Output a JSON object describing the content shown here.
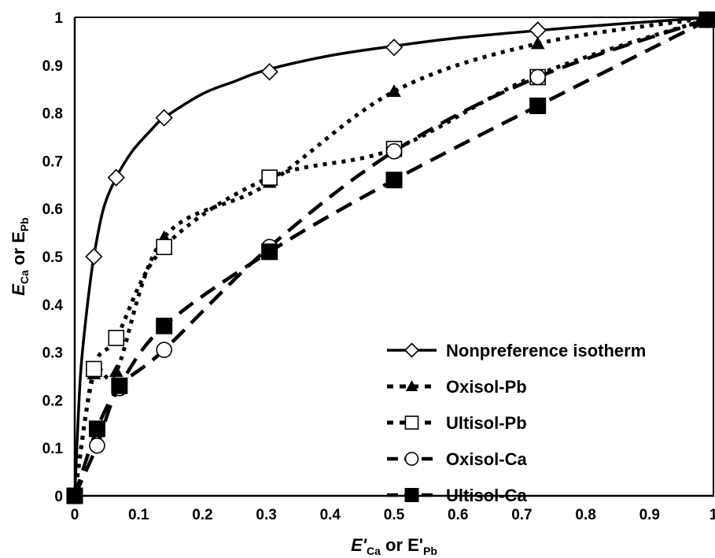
{
  "chart_data": {
    "type": "line",
    "xlabel": {
      "main": "E'",
      "sub1": "Ca",
      "mid": " or E'",
      "sub2": "Pb"
    },
    "ylabel": {
      "main": "E",
      "sub1": "Ca",
      "mid": " or E",
      "sub2": "Pb"
    },
    "xlim": [
      0,
      1
    ],
    "ylim": [
      0,
      1
    ],
    "x_ticks": [
      "0",
      "0.1",
      "0.2",
      "0.3",
      "0.4",
      "0.5",
      "0.6",
      "0.7",
      "0.8",
      "0.9",
      "1"
    ],
    "y_ticks": [
      "0",
      "0.1",
      "0.2",
      "0.3",
      "0.4",
      "0.5",
      "0.6",
      "0.7",
      "0.8",
      "0.9",
      "1"
    ],
    "grid": false,
    "legend_position": "lower-right",
    "series": [
      {
        "name": "Nonpreference isotherm",
        "line": "solid",
        "marker": "diamond-open",
        "color": "#000000",
        "curve": [
          [
            0,
            0
          ],
          [
            0.005,
            0.15
          ],
          [
            0.01,
            0.27
          ],
          [
            0.02,
            0.4
          ],
          [
            0.03,
            0.5
          ],
          [
            0.045,
            0.6
          ],
          [
            0.065,
            0.665
          ],
          [
            0.09,
            0.72
          ],
          [
            0.12,
            0.765
          ],
          [
            0.14,
            0.79
          ],
          [
            0.2,
            0.84
          ],
          [
            0.25,
            0.866
          ],
          [
            0.3,
            0.89
          ],
          [
            0.4,
            0.92
          ],
          [
            0.5,
            0.94
          ],
          [
            0.6,
            0.957
          ],
          [
            0.73,
            0.973
          ],
          [
            0.85,
            0.986
          ],
          [
            1,
            1
          ]
        ],
        "points": [
          [
            0,
            0
          ],
          [
            0.03,
            0.5
          ],
          [
            0.065,
            0.665
          ],
          [
            0.14,
            0.79
          ],
          [
            0.305,
            0.886
          ],
          [
            0.5,
            0.937
          ],
          [
            0.725,
            0.973
          ],
          [
            0.99,
            0.995
          ]
        ]
      },
      {
        "name": "Oxisol-Pb",
        "line": "dotted",
        "marker": "triangle-filled",
        "color": "#000000",
        "curve": [
          [
            0,
            0
          ],
          [
            0.03,
            0.255
          ],
          [
            0.065,
            0.26
          ],
          [
            0.14,
            0.54
          ],
          [
            0.3,
            0.65
          ],
          [
            0.5,
            0.845
          ],
          [
            0.725,
            0.945
          ],
          [
            1,
            1
          ]
        ],
        "points": [
          [
            0,
            0
          ],
          [
            0.03,
            0.255
          ],
          [
            0.065,
            0.26
          ],
          [
            0.14,
            0.54
          ],
          [
            0.305,
            0.655
          ],
          [
            0.5,
            0.845
          ],
          [
            0.725,
            0.945
          ],
          [
            0.99,
            0.995
          ]
        ]
      },
      {
        "name": "Ultisol-Pb",
        "line": "dotted",
        "marker": "square-open",
        "color": "#000000",
        "curve": [
          [
            0,
            0
          ],
          [
            0.03,
            0.265
          ],
          [
            0.065,
            0.33
          ],
          [
            0.14,
            0.52
          ],
          [
            0.305,
            0.665
          ],
          [
            0.5,
            0.725
          ],
          [
            0.725,
            0.88
          ],
          [
            1,
            1
          ]
        ],
        "points": [
          [
            0,
            0
          ],
          [
            0.03,
            0.265
          ],
          [
            0.065,
            0.33
          ],
          [
            0.14,
            0.52
          ],
          [
            0.305,
            0.665
          ],
          [
            0.5,
            0.725
          ],
          [
            0.725,
            0.875
          ],
          [
            0.99,
            0.995
          ]
        ]
      },
      {
        "name": "Oxisol-Ca",
        "line": "dashed",
        "marker": "circle-open",
        "color": "#000000",
        "curve": [
          [
            0,
            0
          ],
          [
            0.035,
            0.105
          ],
          [
            0.07,
            0.225
          ],
          [
            0.14,
            0.305
          ],
          [
            0.305,
            0.52
          ],
          [
            0.5,
            0.72
          ],
          [
            0.725,
            0.875
          ],
          [
            1,
            1
          ]
        ],
        "points": [
          [
            0,
            0
          ],
          [
            0.035,
            0.105
          ],
          [
            0.07,
            0.225
          ],
          [
            0.14,
            0.305
          ],
          [
            0.305,
            0.52
          ],
          [
            0.5,
            0.72
          ],
          [
            0.725,
            0.875
          ],
          [
            0.99,
            0.995
          ]
        ]
      },
      {
        "name": "Ultisol-Ca",
        "line": "dashed",
        "marker": "square-filled",
        "color": "#000000",
        "curve": [
          [
            0,
            0
          ],
          [
            0.035,
            0.14
          ],
          [
            0.07,
            0.23
          ],
          [
            0.14,
            0.355
          ],
          [
            0.305,
            0.51
          ],
          [
            0.5,
            0.66
          ],
          [
            0.725,
            0.815
          ],
          [
            1,
            1
          ]
        ],
        "points": [
          [
            0,
            0
          ],
          [
            0.035,
            0.14
          ],
          [
            0.07,
            0.23
          ],
          [
            0.14,
            0.355
          ],
          [
            0.305,
            0.51
          ],
          [
            0.5,
            0.66
          ],
          [
            0.725,
            0.815
          ],
          [
            0.99,
            0.995
          ]
        ]
      }
    ]
  }
}
